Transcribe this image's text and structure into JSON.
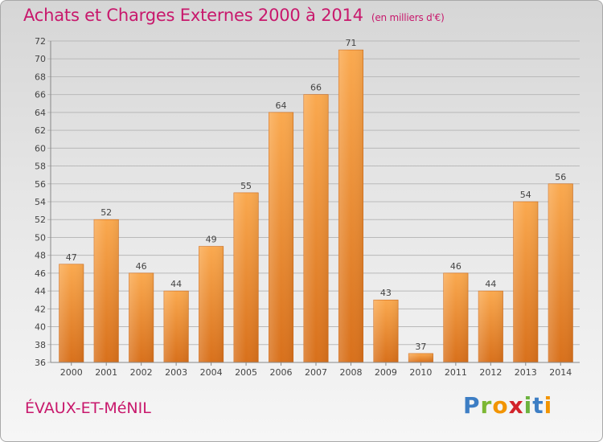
{
  "title": "Achats et Charges Externes 2000 à 2014",
  "subtitle": "(en milliers d'€)",
  "commune": "ÉVAUX-ET-MéNIL",
  "logo": "Proxiti",
  "colors": {
    "accent": "#c8186c",
    "bar_light": "#f9a850",
    "bar_dark": "#d9711c"
  },
  "chart_data": {
    "type": "bar",
    "title": "Achats et Charges Externes 2000 à 2014",
    "subtitle": "(en milliers d'€)",
    "categories": [
      "2000",
      "2001",
      "2002",
      "2003",
      "2004",
      "2005",
      "2006",
      "2007",
      "2008",
      "2009",
      "2010",
      "2011",
      "2012",
      "2013",
      "2014"
    ],
    "values": [
      47,
      52,
      46,
      44,
      49,
      55,
      64,
      66,
      71,
      43,
      37,
      46,
      44,
      54,
      56
    ],
    "ylim": [
      36,
      72
    ],
    "yticks": [
      36,
      38,
      40,
      42,
      44,
      46,
      48,
      50,
      52,
      54,
      56,
      58,
      60,
      62,
      64,
      66,
      68,
      70,
      72
    ],
    "grid": true,
    "xlabel": "",
    "ylabel": ""
  }
}
